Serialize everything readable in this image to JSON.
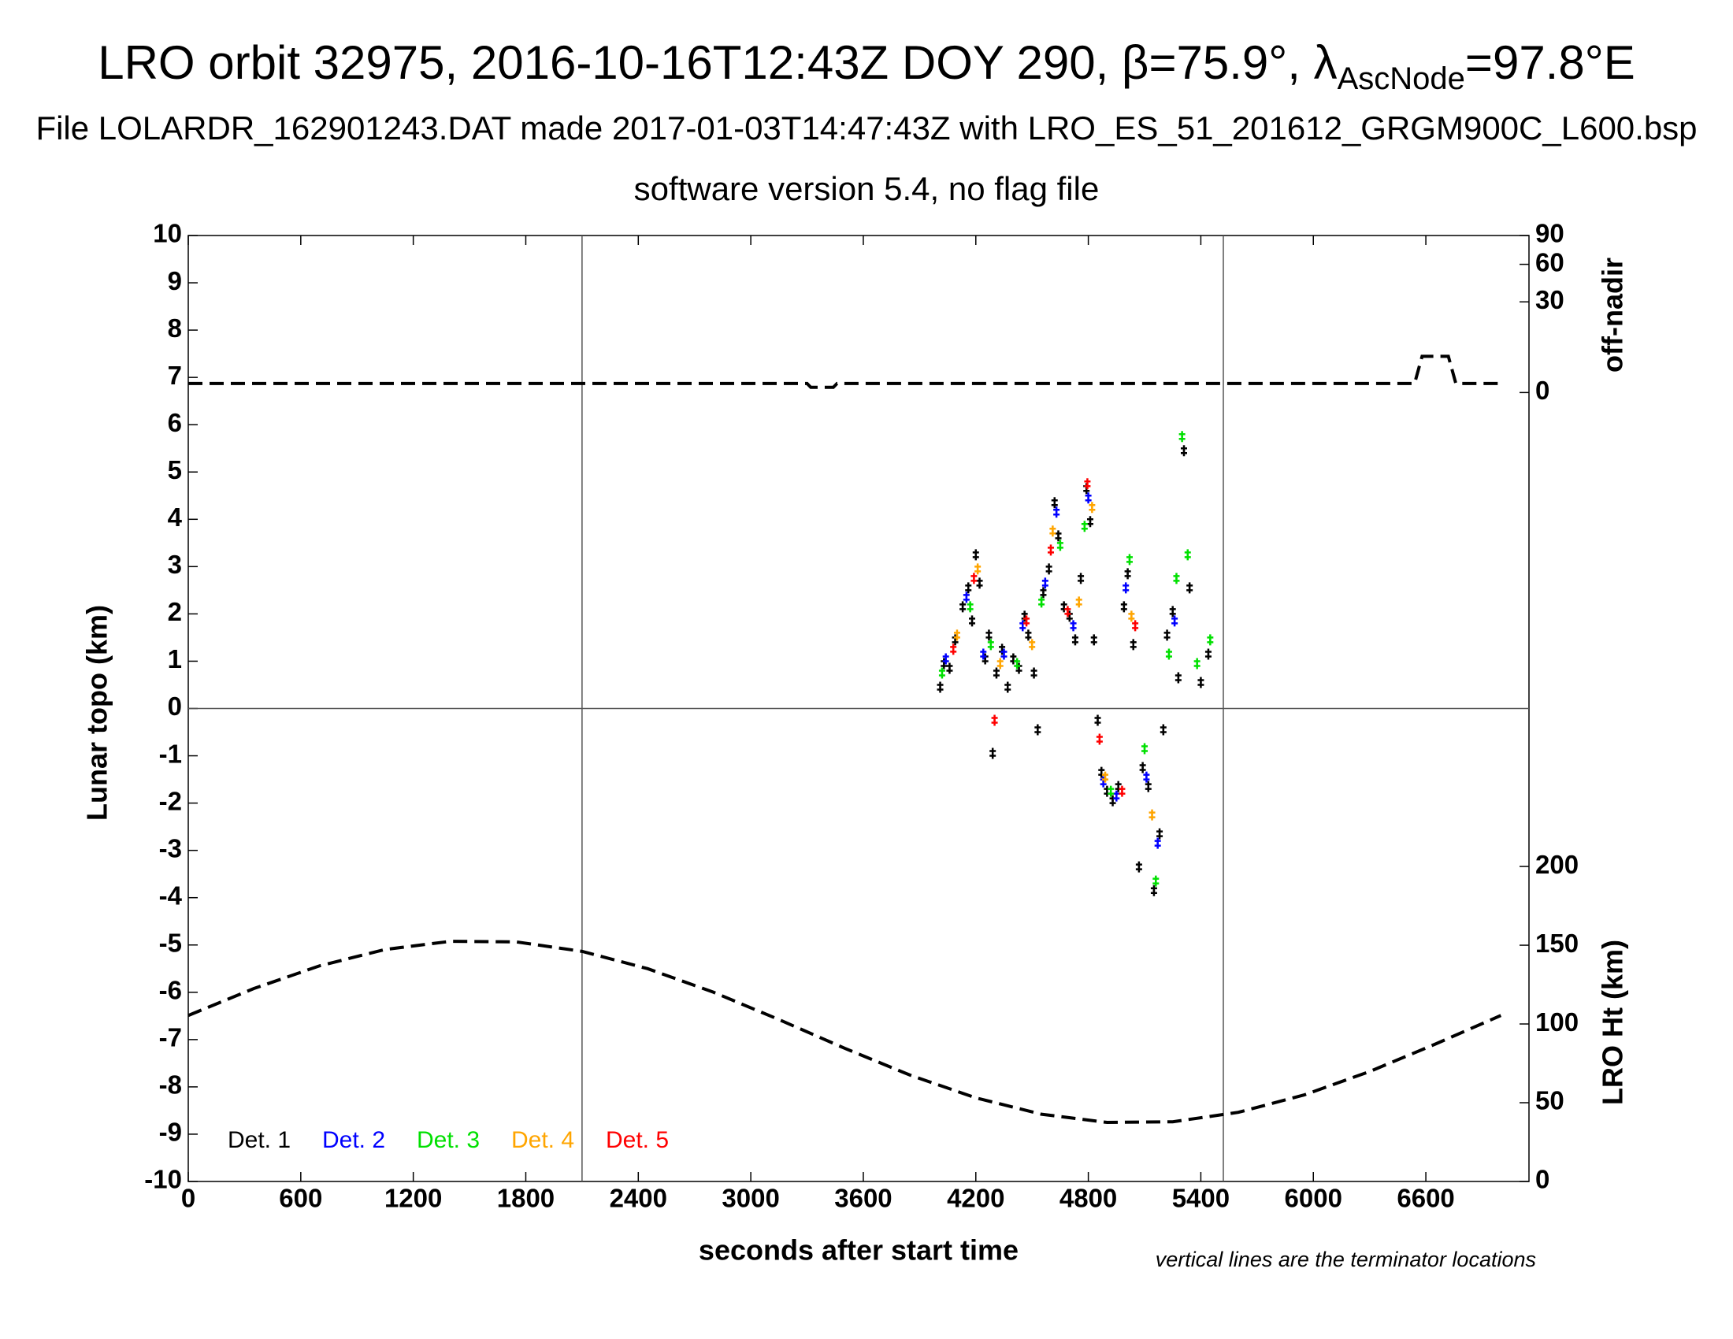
{
  "chart_data": {
    "type": "scatter",
    "title": {
      "main": "LRO orbit 32975, 2016-10-16T12:43Z DOY 290, β=75.9°, λ",
      "sub": "AscNode",
      "tail": "=97.8°E"
    },
    "subtitle": [
      "File LOLARDR_162901243.DAT made 2017-01-03T14:47:43Z with LRO_ES_51_201612_GRGM900C_L600.bsp",
      "software version 5.4, no flag file"
    ],
    "xlabel": "seconds after start time",
    "ylabel": "Lunar topo (km)",
    "y2label": "off-nadir",
    "y3label": "LRO Ht (km)",
    "note": "vertical lines are the terminator locations",
    "xlim": [
      0,
      7150
    ],
    "xticks": [
      0,
      600,
      1200,
      1800,
      2400,
      3000,
      3600,
      4200,
      4800,
      5400,
      6000,
      6600
    ],
    "ylim": [
      -10,
      10
    ],
    "yticks": [
      -10,
      -9,
      -8,
      -7,
      -6,
      -5,
      -4,
      -3,
      -2,
      -1,
      0,
      1,
      2,
      3,
      4,
      5,
      6,
      7,
      8,
      9,
      10
    ],
    "y2lim": [
      0,
      90
    ],
    "y2ticks": [
      0,
      30,
      60,
      90
    ],
    "y2scale": "sqrt",
    "y3lim": [
      0,
      200
    ],
    "y3ticks": [
      0,
      50,
      100,
      150,
      200
    ],
    "terminators": [
      2100,
      5520
    ],
    "series": [
      {
        "name": "Det. 1",
        "color": "#000000",
        "x": [
          4010,
          4030,
          4060,
          4090,
          4130,
          4160,
          4180,
          4200,
          4220,
          4250,
          4270,
          4290,
          4310,
          4340,
          4370,
          4400,
          4430,
          4460,
          4480,
          4510,
          4530,
          4560,
          4590,
          4620,
          4640,
          4670,
          4700,
          4730,
          4760,
          4790,
          4810,
          4830,
          4850,
          4870,
          4900,
          4930,
          4960,
          4990,
          5010,
          5040,
          5070,
          5090,
          5120,
          5150,
          5180,
          5200,
          5220,
          5250,
          5280,
          5310,
          5340,
          5400,
          5440
        ],
        "values": [
          0.5,
          1.0,
          0.9,
          1.5,
          2.2,
          2.6,
          1.9,
          3.3,
          2.7,
          1.1,
          1.6,
          -0.9,
          0.8,
          1.3,
          0.5,
          1.1,
          0.9,
          2.0,
          1.6,
          0.8,
          -0.4,
          2.5,
          3.0,
          4.4,
          3.7,
          2.2,
          2.0,
          1.5,
          2.8,
          4.7,
          4.0,
          1.5,
          -0.2,
          -1.3,
          -1.7,
          -1.9,
          -1.6,
          2.2,
          2.9,
          1.4,
          -3.3,
          -1.2,
          -1.6,
          -3.8,
          -2.6,
          -0.4,
          1.6,
          2.1,
          0.7,
          5.5,
          2.6,
          0.6,
          1.2
        ]
      },
      {
        "name": "Det. 2",
        "color": "#0000ff",
        "x": [
          4040,
          4150,
          4240,
          4350,
          4450,
          4570,
          4630,
          4720,
          4800,
          4880,
          4950,
          5000,
          5110,
          5170,
          5260
        ],
        "values": [
          1.1,
          2.4,
          1.2,
          1.2,
          1.8,
          2.7,
          4.2,
          1.8,
          4.5,
          -1.5,
          -1.8,
          2.6,
          -1.4,
          -2.8,
          1.9
        ]
      },
      {
        "name": "Det. 3",
        "color": "#00e000",
        "x": [
          4020,
          4170,
          4280,
          4420,
          4550,
          4650,
          4780,
          4920,
          5020,
          5100,
          5160,
          5230,
          5270,
          5300,
          5330,
          5380,
          5450
        ],
        "values": [
          0.8,
          2.2,
          1.4,
          1.0,
          2.3,
          3.5,
          3.9,
          -1.7,
          3.2,
          -0.8,
          -3.6,
          1.2,
          2.8,
          5.8,
          3.3,
          1.0,
          1.5
        ]
      },
      {
        "name": "Det. 4",
        "color": "#ffa500",
        "x": [
          4100,
          4210,
          4330,
          4500,
          4610,
          4750,
          4820,
          4890,
          5030,
          5140
        ],
        "values": [
          1.6,
          3.0,
          1.0,
          1.4,
          3.8,
          2.3,
          4.3,
          -1.4,
          2.0,
          -2.2
        ]
      },
      {
        "name": "Det. 5",
        "color": "#ff0000",
        "x": [
          4080,
          4190,
          4300,
          4470,
          4600,
          4690,
          4795,
          4860,
          4980,
          5050
        ],
        "values": [
          1.3,
          2.8,
          -0.2,
          1.9,
          3.4,
          2.1,
          4.8,
          -0.6,
          -1.7,
          1.8
        ]
      }
    ],
    "off_nadir": {
      "axis": "y2",
      "color": "#000000",
      "x": [
        0,
        3300,
        3320,
        3440,
        3460,
        6540,
        6580,
        6720,
        6760,
        7000
      ],
      "values": [
        0.3,
        0.3,
        0.1,
        0.1,
        0.3,
        0.3,
        4.8,
        4.8,
        0.3,
        0.3
      ]
    },
    "lro_height": {
      "axis": "y3",
      "color": "#000000",
      "x": [
        0,
        350,
        700,
        1050,
        1400,
        1750,
        2100,
        2450,
        2800,
        3150,
        3500,
        3850,
        4200,
        4550,
        4900,
        5250,
        5600,
        5950,
        6300,
        6650,
        7000
      ],
      "values": [
        105.4,
        122.5,
        136.9,
        147.3,
        152.5,
        152.1,
        146.1,
        135.1,
        120.2,
        102.8,
        84.6,
        67.5,
        53.1,
        42.7,
        37.5,
        37.9,
        43.9,
        54.9,
        69.8,
        87.2,
        105.4
      ]
    }
  }
}
